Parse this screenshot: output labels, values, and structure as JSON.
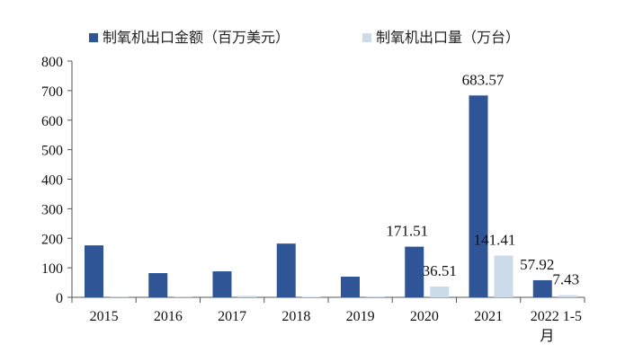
{
  "chart_data": {
    "type": "bar",
    "categories": [
      "2015",
      "2016",
      "2017",
      "2018",
      "2019",
      "2020",
      "2021",
      "2022 1-5月"
    ],
    "series": [
      {
        "name": "制氧机出口金额（百万美元）",
        "color": "#2f5597",
        "values": [
          176,
          82,
          88,
          182,
          70,
          171.51,
          683.57,
          57.92
        ],
        "data_labels": [
          null,
          null,
          null,
          null,
          null,
          "171.51",
          "683.57",
          "57.92"
        ]
      },
      {
        "name": "制氧机出口量（万台）",
        "color": "#ccdbea",
        "values": [
          1,
          1,
          5,
          2,
          3,
          36.51,
          141.41,
          7.43
        ],
        "data_labels": [
          null,
          null,
          null,
          null,
          null,
          "36.51",
          "141.41",
          "7.43"
        ]
      }
    ],
    "yticks": [
      "0",
      "100",
      "200",
      "300",
      "400",
      "500",
      "600",
      "700",
      "800"
    ],
    "ylim": [
      0,
      800
    ],
    "legend_position": "top",
    "grid": false
  }
}
